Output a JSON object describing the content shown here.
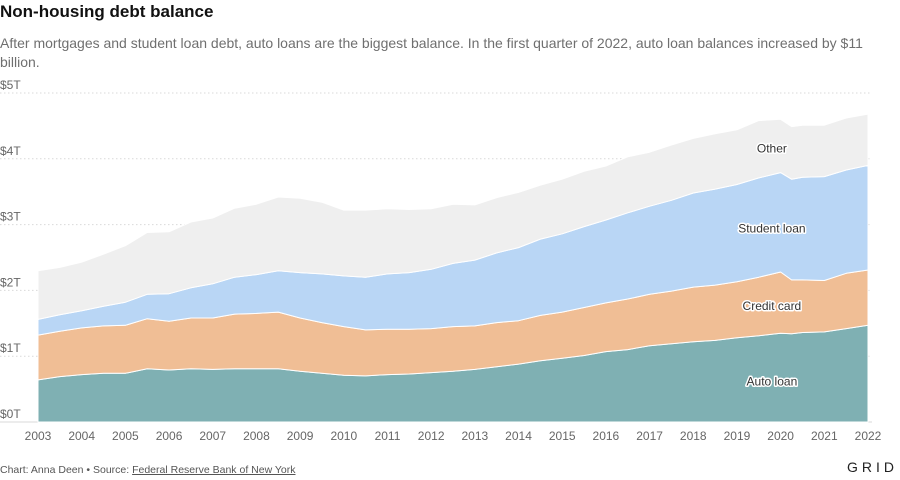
{
  "header": {
    "title": "Non-housing debt balance",
    "subtitle": "After mortgages and student loan debt, auto loans are the biggest balance. In the first quarter of 2022, auto loan balances increased by $11 billion."
  },
  "footer": {
    "credit": "Chart: Anna Deen • Source: ",
    "source_link": "Federal Reserve Bank of New York",
    "logo": "GRID"
  },
  "colors": {
    "auto": "#7fb0b3",
    "credit": "#f0be95",
    "student": "#b9d6f5",
    "other": "#efefef",
    "grid": "#d9d9d9",
    "tick": "#666666"
  },
  "chart_data": {
    "type": "area",
    "stacked": true,
    "x": [
      2003.0,
      2003.5,
      2004.0,
      2004.5,
      2005.0,
      2005.5,
      2006.0,
      2006.5,
      2007.0,
      2007.5,
      2008.0,
      2008.5,
      2009.0,
      2009.5,
      2010.0,
      2010.5,
      2011.0,
      2011.5,
      2012.0,
      2012.5,
      2013.0,
      2013.5,
      2014.0,
      2014.5,
      2015.0,
      2015.5,
      2016.0,
      2016.5,
      2017.0,
      2017.5,
      2018.0,
      2018.5,
      2019.0,
      2019.5,
      2020.0,
      2020.25,
      2020.5,
      2021.0,
      2021.5,
      2022.0
    ],
    "series": [
      {
        "name": "Auto loan",
        "color_key": "auto",
        "values": [
          0.64,
          0.69,
          0.72,
          0.74,
          0.74,
          0.81,
          0.79,
          0.81,
          0.8,
          0.81,
          0.81,
          0.81,
          0.77,
          0.74,
          0.71,
          0.7,
          0.72,
          0.73,
          0.75,
          0.77,
          0.8,
          0.84,
          0.88,
          0.93,
          0.97,
          1.01,
          1.07,
          1.1,
          1.16,
          1.19,
          1.22,
          1.24,
          1.28,
          1.31,
          1.35,
          1.34,
          1.36,
          1.37,
          1.42,
          1.47
        ]
      },
      {
        "name": "Credit card",
        "color_key": "credit",
        "values": [
          0.68,
          0.69,
          0.71,
          0.72,
          0.73,
          0.76,
          0.74,
          0.77,
          0.78,
          0.83,
          0.84,
          0.86,
          0.81,
          0.77,
          0.74,
          0.7,
          0.69,
          0.68,
          0.67,
          0.68,
          0.66,
          0.67,
          0.66,
          0.69,
          0.7,
          0.73,
          0.74,
          0.77,
          0.78,
          0.8,
          0.83,
          0.84,
          0.85,
          0.89,
          0.93,
          0.82,
          0.8,
          0.78,
          0.84,
          0.84
        ]
      },
      {
        "name": "Student loan",
        "color_key": "student",
        "values": [
          0.24,
          0.25,
          0.26,
          0.3,
          0.35,
          0.37,
          0.42,
          0.46,
          0.52,
          0.56,
          0.59,
          0.63,
          0.69,
          0.74,
          0.77,
          0.8,
          0.84,
          0.86,
          0.9,
          0.96,
          1.0,
          1.06,
          1.11,
          1.16,
          1.19,
          1.23,
          1.26,
          1.31,
          1.34,
          1.38,
          1.43,
          1.46,
          1.48,
          1.51,
          1.51,
          1.53,
          1.56,
          1.58,
          1.57,
          1.59
        ]
      },
      {
        "name": "Other",
        "color_key": "other",
        "values": [
          0.74,
          0.72,
          0.74,
          0.79,
          0.86,
          0.94,
          0.94,
          1.0,
          1.0,
          1.05,
          1.07,
          1.12,
          1.13,
          1.09,
          1.0,
          1.02,
          0.99,
          0.96,
          0.92,
          0.9,
          0.84,
          0.84,
          0.84,
          0.82,
          0.83,
          0.84,
          0.82,
          0.85,
          0.82,
          0.84,
          0.83,
          0.84,
          0.83,
          0.87,
          0.81,
          0.8,
          0.79,
          0.78,
          0.79,
          0.78
        ]
      }
    ],
    "series_labels": [
      "Other",
      "Student loan",
      "Credit card",
      "Auto loan"
    ],
    "yticks": [
      "$0T",
      "$1T",
      "$2T",
      "$3T",
      "$4T",
      "$5T"
    ],
    "ytick_values": [
      0,
      1,
      2,
      3,
      4,
      5
    ],
    "ylim": [
      0,
      5
    ],
    "xticks": [
      "2003",
      "2004",
      "2005",
      "2006",
      "2007",
      "2008",
      "2009",
      "2010",
      "2011",
      "2012",
      "2013",
      "2014",
      "2015",
      "2016",
      "2017",
      "2018",
      "2019",
      "2020",
      "2021",
      "2022"
    ],
    "xlim": [
      2003,
      2022
    ],
    "grid": true,
    "xlabel": "",
    "ylabel": ""
  }
}
